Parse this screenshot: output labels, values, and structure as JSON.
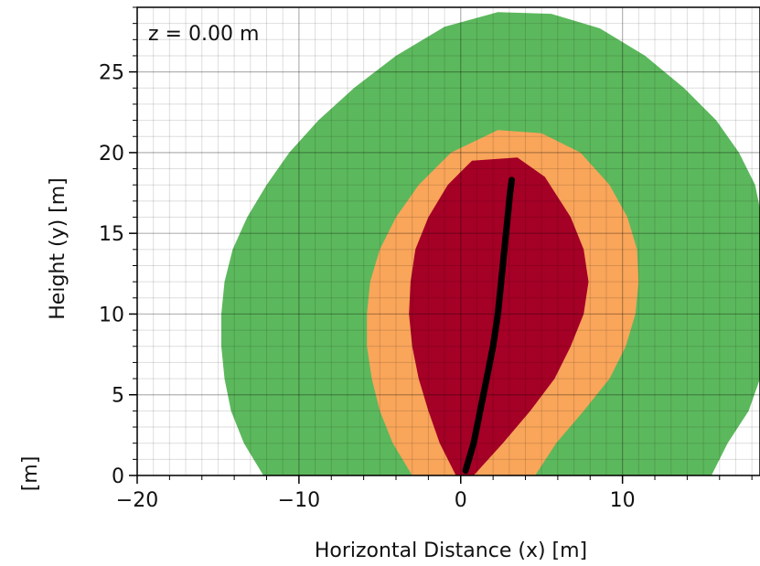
{
  "chart_data": {
    "type": "area",
    "annotation": "z = 0.00 m",
    "xlabel": "Horizontal Distance (x) [m]",
    "ylabel": "Height (y) [m]",
    "side_label": "[m]",
    "xlim": [
      -20,
      18.5
    ],
    "ylim": [
      0,
      29
    ],
    "x_ticks": [
      -20,
      -10,
      0,
      10
    ],
    "x_tick_labels": [
      "−20",
      "−10",
      "0",
      "10"
    ],
    "y_ticks": [
      0,
      5,
      10,
      15,
      20,
      25
    ],
    "y_tick_labels": [
      "0",
      "5",
      "10",
      "15",
      "20",
      "25"
    ],
    "grid": true,
    "zones": [
      {
        "color": "#5cb85c",
        "boundary": [
          [
            -12.2,
            0
          ],
          [
            -13.4,
            2
          ],
          [
            -14.2,
            4
          ],
          [
            -14.6,
            6
          ],
          [
            -14.8,
            8
          ],
          [
            -14.8,
            10
          ],
          [
            -14.6,
            12
          ],
          [
            -14.1,
            14
          ],
          [
            -13.2,
            16
          ],
          [
            -12,
            18
          ],
          [
            -10.6,
            20
          ],
          [
            -8.8,
            22
          ],
          [
            -6.6,
            24
          ],
          [
            -4,
            26
          ],
          [
            -1,
            27.8
          ],
          [
            2.3,
            28.7
          ],
          [
            5.6,
            28.6
          ],
          [
            8.6,
            27.7
          ],
          [
            11.4,
            26
          ],
          [
            13.8,
            24
          ],
          [
            15.8,
            22
          ],
          [
            17.2,
            20
          ],
          [
            18.2,
            18
          ],
          [
            18.6,
            16
          ],
          [
            18.6,
            14
          ],
          [
            18.6,
            12
          ],
          [
            18.6,
            10
          ],
          [
            18.6,
            8
          ],
          [
            18.5,
            6
          ],
          [
            17.8,
            4
          ],
          [
            16.5,
            2
          ],
          [
            15.5,
            0
          ]
        ]
      },
      {
        "color": "#f9a55a",
        "boundary": [
          [
            -3,
            0
          ],
          [
            -4.2,
            2
          ],
          [
            -5,
            4
          ],
          [
            -5.5,
            6
          ],
          [
            -5.8,
            8
          ],
          [
            -5.8,
            10
          ],
          [
            -5.6,
            12
          ],
          [
            -5,
            14
          ],
          [
            -4,
            16
          ],
          [
            -2.6,
            18
          ],
          [
            -0.6,
            20
          ],
          [
            2.3,
            21.4
          ],
          [
            5,
            21.2
          ],
          [
            7.4,
            20
          ],
          [
            9.2,
            18
          ],
          [
            10.3,
            16
          ],
          [
            10.9,
            14
          ],
          [
            11,
            12
          ],
          [
            10.8,
            10
          ],
          [
            10.2,
            8
          ],
          [
            9.2,
            6
          ],
          [
            7.6,
            4
          ],
          [
            5.9,
            2
          ],
          [
            4.6,
            0
          ]
        ]
      },
      {
        "color": "#a50026",
        "boundary": [
          [
            -0.3,
            0
          ],
          [
            -1.3,
            2
          ],
          [
            -2,
            4
          ],
          [
            -2.6,
            6
          ],
          [
            -3,
            8
          ],
          [
            -3.2,
            10
          ],
          [
            -3.1,
            12
          ],
          [
            -2.8,
            14
          ],
          [
            -2,
            16
          ],
          [
            -0.8,
            18
          ],
          [
            0.7,
            19.5
          ],
          [
            3.5,
            19.7
          ],
          [
            5.2,
            18.5
          ],
          [
            6.8,
            16
          ],
          [
            7.6,
            14
          ],
          [
            7.9,
            12
          ],
          [
            7.6,
            10
          ],
          [
            6.8,
            8
          ],
          [
            5.8,
            6
          ],
          [
            4.3,
            4
          ],
          [
            2.6,
            2
          ],
          [
            0.8,
            0
          ]
        ]
      }
    ],
    "series": [
      {
        "color": "#000000",
        "x": [
          0.3,
          0.8,
          1.2,
          1.6,
          2.0,
          2.3,
          2.5,
          2.7,
          2.9,
          3.05,
          3.15
        ],
        "y": [
          0.3,
          2.0,
          4.0,
          6.0,
          8.0,
          10.0,
          12.0,
          14.0,
          16.0,
          17.5,
          18.3
        ]
      }
    ]
  }
}
